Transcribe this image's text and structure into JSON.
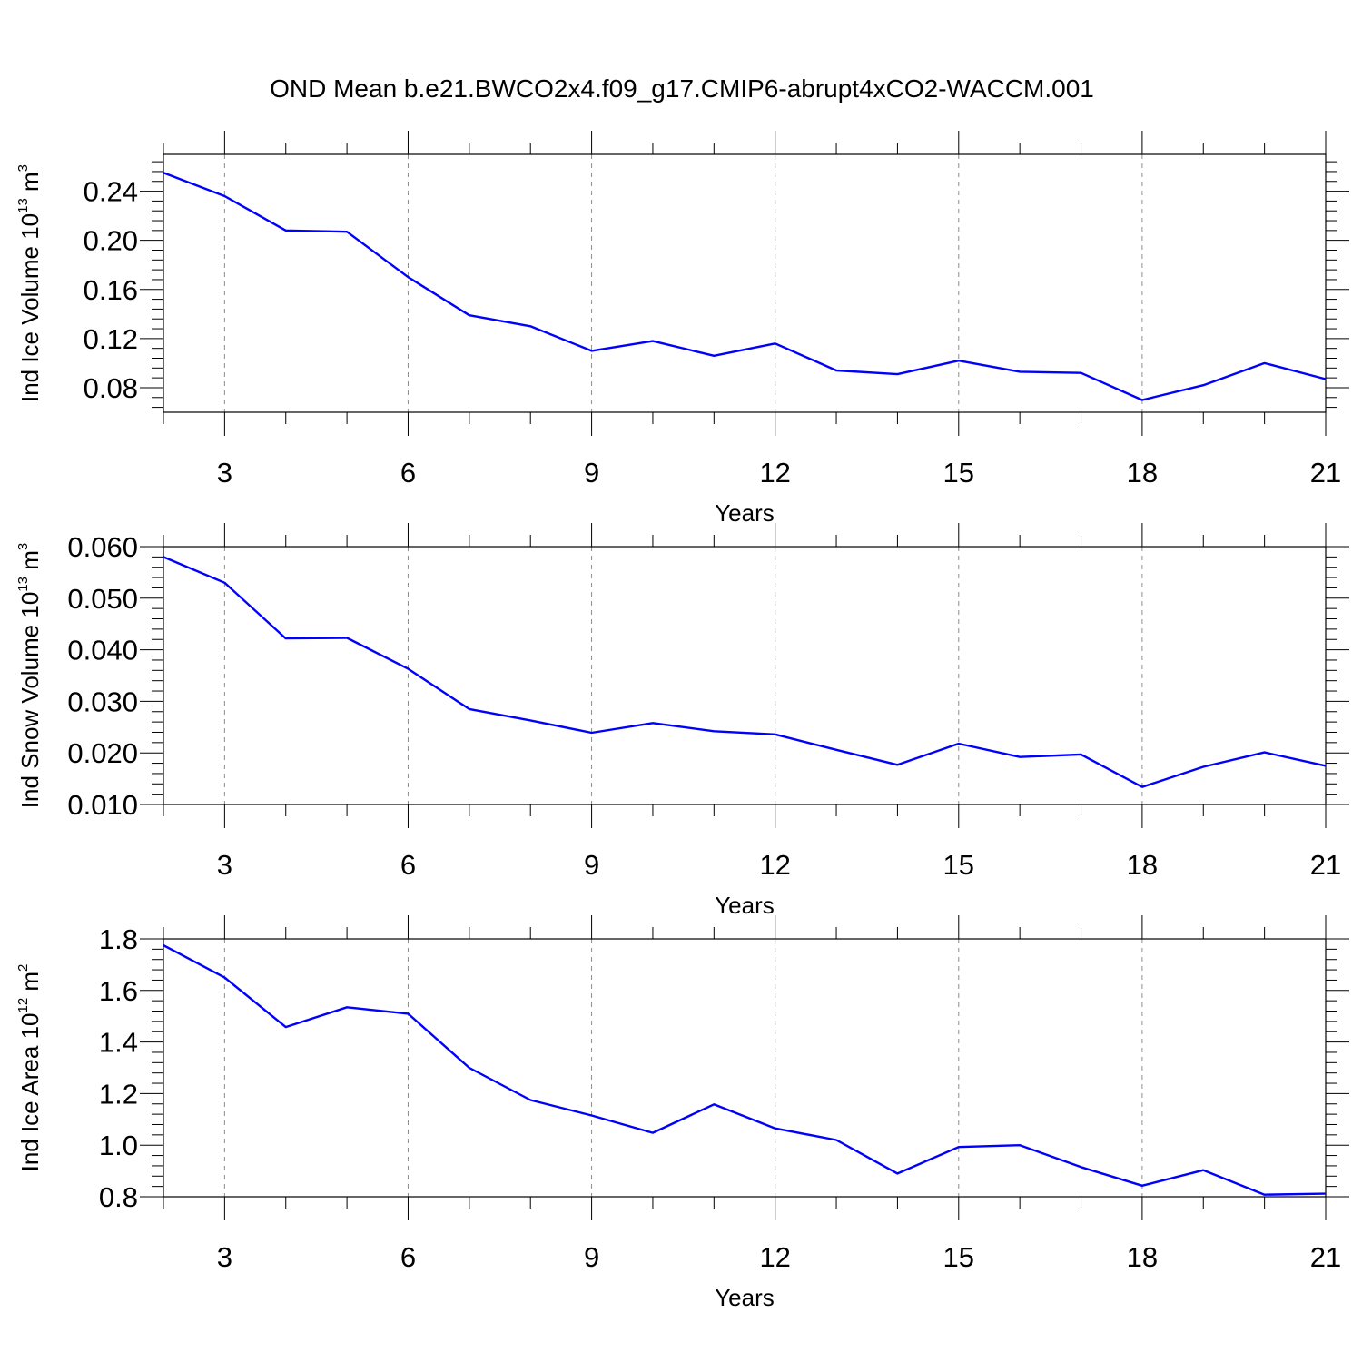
{
  "title": "OND Mean b.e21.BWCO2x4.f09_g17.CMIP6-abrupt4xCO2-WACCM.001",
  "chart_data": [
    {
      "type": "line",
      "name": "ice-volume",
      "ylabel": "Ind Ice Volume 10",
      "ylabel_exp": "13",
      "ylabel_unit": " m",
      "ylabel_unit_exp": "3",
      "xlabel": "Years",
      "xlim": [
        2,
        21
      ],
      "ylim": [
        0.06,
        0.27
      ],
      "x_ticks": [
        3,
        6,
        9,
        12,
        15,
        18,
        21
      ],
      "x_tick_labels": [
        "3",
        "6",
        "9",
        "12",
        "15",
        "18",
        "21"
      ],
      "y_ticks": [
        0.08,
        0.12,
        0.16,
        0.2,
        0.24
      ],
      "y_tick_labels": [
        "0.08",
        "0.12",
        "0.16",
        "0.20",
        "0.24"
      ],
      "color": "#0000ff",
      "x": [
        2,
        3,
        4,
        5,
        6,
        7,
        8,
        9,
        10,
        11,
        12,
        13,
        14,
        15,
        16,
        17,
        18,
        19,
        20,
        21
      ],
      "values": [
        0.255,
        0.236,
        0.208,
        0.207,
        0.17,
        0.139,
        0.13,
        0.11,
        0.118,
        0.106,
        0.116,
        0.094,
        0.091,
        0.102,
        0.093,
        0.092,
        0.07,
        0.082,
        0.1,
        0.087
      ]
    },
    {
      "type": "line",
      "name": "snow-volume",
      "ylabel": "Ind Snow Volume 10",
      "ylabel_exp": "13",
      "ylabel_unit": " m",
      "ylabel_unit_exp": "3",
      "xlabel": "Years",
      "xlim": [
        2,
        21
      ],
      "ylim": [
        0.01,
        0.06
      ],
      "x_ticks": [
        3,
        6,
        9,
        12,
        15,
        18,
        21
      ],
      "x_tick_labels": [
        "3",
        "6",
        "9",
        "12",
        "15",
        "18",
        "21"
      ],
      "y_ticks": [
        0.01,
        0.02,
        0.03,
        0.04,
        0.05,
        0.06
      ],
      "y_tick_labels": [
        "0.010",
        "0.020",
        "0.030",
        "0.040",
        "0.050",
        "0.060"
      ],
      "color": "#0000ff",
      "x": [
        2,
        3,
        4,
        5,
        6,
        7,
        8,
        9,
        10,
        11,
        12,
        13,
        14,
        15,
        16,
        17,
        18,
        19,
        20,
        21
      ],
      "values": [
        0.058,
        0.053,
        0.0422,
        0.0423,
        0.0363,
        0.0285,
        0.0263,
        0.0239,
        0.0258,
        0.0242,
        0.0236,
        0.0206,
        0.0177,
        0.0218,
        0.0192,
        0.0197,
        0.0134,
        0.0173,
        0.0201,
        0.0175
      ]
    },
    {
      "type": "line",
      "name": "ice-area",
      "ylabel": "Ind Ice Area 10",
      "ylabel_exp": "12",
      "ylabel_unit": " m",
      "ylabel_unit_exp": "2",
      "xlabel": "Years",
      "xlim": [
        2,
        21
      ],
      "ylim": [
        0.8,
        1.8
      ],
      "x_ticks": [
        3,
        6,
        9,
        12,
        15,
        18,
        21
      ],
      "x_tick_labels": [
        "3",
        "6",
        "9",
        "12",
        "15",
        "18",
        "21"
      ],
      "y_ticks": [
        0.8,
        1.0,
        1.2,
        1.4,
        1.6,
        1.8
      ],
      "y_tick_labels": [
        "0.8",
        "1.0",
        "1.2",
        "1.4",
        "1.6",
        "1.8"
      ],
      "color": "#0000ff",
      "x": [
        2,
        3,
        4,
        5,
        6,
        7,
        8,
        9,
        10,
        11,
        12,
        13,
        14,
        15,
        16,
        17,
        18,
        19,
        20,
        21
      ],
      "values": [
        1.775,
        1.65,
        1.458,
        1.535,
        1.51,
        1.3,
        1.175,
        1.115,
        1.048,
        1.158,
        1.065,
        1.02,
        0.89,
        0.993,
        1.0,
        0.915,
        0.843,
        0.903,
        0.808,
        0.812
      ]
    }
  ]
}
